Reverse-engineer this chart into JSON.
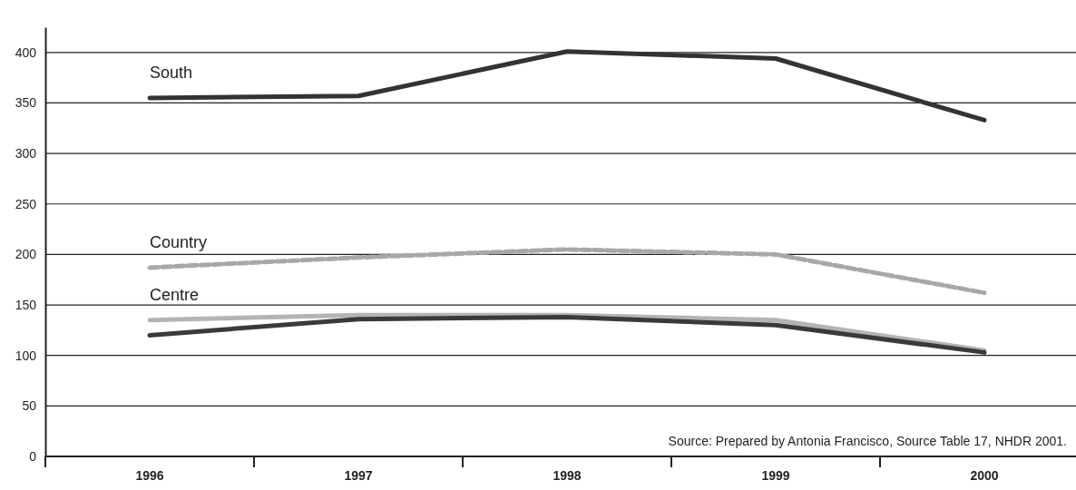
{
  "chart_data": {
    "type": "line",
    "categories": [
      "1996",
      "1997",
      "1998",
      "1999",
      "2000"
    ],
    "series": [
      {
        "name": "South",
        "color": "#333333",
        "values": [
          355,
          357,
          401,
          394,
          333
        ]
      },
      {
        "name": "Country",
        "color": "#a8a8a8",
        "line_style": "dashed",
        "values": [
          187,
          197,
          205,
          200,
          162
        ]
      },
      {
        "name": "Centre",
        "color": "#b4b4b4",
        "values": [
          135,
          140,
          140,
          135,
          105
        ]
      },
      {
        "color": "#3a3a3a",
        "values": [
          120,
          136,
          138,
          130,
          103
        ]
      }
    ],
    "ylim": [
      0,
      425
    ],
    "yticks": [
      0,
      50,
      100,
      150,
      200,
      250,
      300,
      350,
      400
    ],
    "grid": "y",
    "line_style": "solid",
    "annotations": [
      "Source: Prepared by Antonia Francisco, Source Table 17, NHDR 2001."
    ]
  }
}
